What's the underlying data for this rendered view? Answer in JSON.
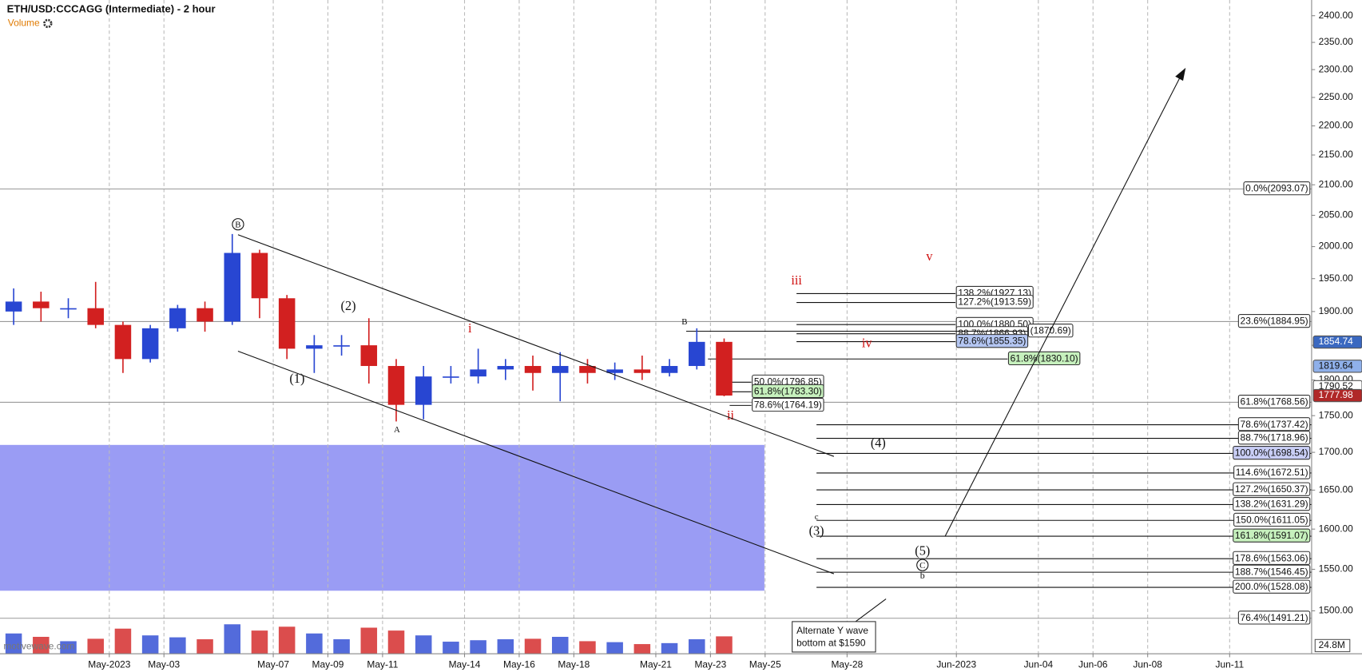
{
  "chart_data": {
    "type": "candlestick",
    "title": "ETH/USD:CCCAGG (Intermediate) - 2 hour",
    "volume_label": "Volume",
    "watermark": "motivewave.com",
    "log_scale": true,
    "grid": true,
    "up_color": "#2846d2",
    "down_color": "#d22020",
    "x": [
      "2023-04-27",
      "2023-04-28",
      "2023-04-29",
      "2023-04-30",
      "2023-05-01",
      "2023-05-02",
      "2023-05-03",
      "2023-05-04",
      "2023-05-05",
      "2023-05-06",
      "2023-05-07",
      "2023-05-08",
      "2023-05-09",
      "2023-05-10",
      "2023-05-11",
      "2023-05-12",
      "2023-05-13",
      "2023-05-14",
      "2023-05-15",
      "2023-05-16",
      "2023-05-17",
      "2023-05-18",
      "2023-05-19",
      "2023-05-20",
      "2023-05-21",
      "2023-05-22",
      "2023-05-23"
    ],
    "open": [
      1900,
      1915,
      1905,
      1905,
      1880,
      1830,
      1875,
      1905,
      1885,
      1990,
      1920,
      1845,
      1850,
      1850,
      1820,
      1765,
      1805,
      1805,
      1815,
      1820,
      1810,
      1820,
      1810,
      1815,
      1810,
      1820,
      1855
    ],
    "high": [
      1935,
      1930,
      1920,
      1945,
      1885,
      1880,
      1910,
      1915,
      2020,
      1995,
      1925,
      1865,
      1865,
      1890,
      1830,
      1820,
      1820,
      1845,
      1830,
      1835,
      1840,
      1830,
      1825,
      1835,
      1830,
      1875,
      1860
    ],
    "low": [
      1880,
      1885,
      1890,
      1875,
      1810,
      1825,
      1870,
      1870,
      1880,
      1890,
      1830,
      1810,
      1835,
      1795,
      1742,
      1745,
      1795,
      1795,
      1800,
      1785,
      1770,
      1795,
      1800,
      1800,
      1805,
      1815,
      1777
    ],
    "close": [
      1915,
      1905,
      1905,
      1880,
      1830,
      1875,
      1905,
      1885,
      1990,
      1920,
      1845,
      1850,
      1850,
      1820,
      1765,
      1805,
      1805,
      1815,
      1820,
      1810,
      1820,
      1810,
      1815,
      1810,
      1820,
      1855,
      1777.98
    ],
    "volume": [
      420,
      350,
      260,
      310,
      520,
      380,
      340,
      300,
      610,
      480,
      560,
      420,
      300,
      540,
      480,
      380,
      250,
      280,
      300,
      310,
      350,
      260,
      240,
      200,
      220,
      300,
      360
    ],
    "volume_ylim": [
      0,
      900
    ],
    "volume_tag": {
      "value": 24.8,
      "label": "24.8M"
    },
    "xlim": [
      "2023-04-27",
      "2023-06-14"
    ],
    "xticks": [
      {
        "value": "2023-05-01",
        "label": "May-2023"
      },
      {
        "value": "2023-05-03",
        "label": "May-03"
      },
      {
        "value": "2023-05-07",
        "label": "May-07"
      },
      {
        "value": "2023-05-09",
        "label": "May-09"
      },
      {
        "value": "2023-05-11",
        "label": "May-11"
      },
      {
        "value": "2023-05-14",
        "label": "May-14"
      },
      {
        "value": "2023-05-16",
        "label": "May-16"
      },
      {
        "value": "2023-05-18",
        "label": "May-18"
      },
      {
        "value": "2023-05-21",
        "label": "May-21"
      },
      {
        "value": "2023-05-23",
        "label": "May-23"
      },
      {
        "value": "2023-05-25",
        "label": "May-25"
      },
      {
        "value": "2023-05-28",
        "label": "May-28"
      },
      {
        "value": "2023-06-01",
        "label": "Jun-2023"
      },
      {
        "value": "2023-06-04",
        "label": "Jun-04"
      },
      {
        "value": "2023-06-06",
        "label": "Jun-06"
      },
      {
        "value": "2023-06-08",
        "label": "Jun-08"
      },
      {
        "value": "2023-06-11",
        "label": "Jun-11"
      }
    ],
    "ylim": [
      1450,
      2430
    ],
    "yticks": [
      {
        "value": 1500,
        "label": "1500.00"
      },
      {
        "value": 1550,
        "label": "1550.00"
      },
      {
        "value": 1600,
        "label": "1600.00"
      },
      {
        "value": 1650,
        "label": "1650.00"
      },
      {
        "value": 1700,
        "label": "1700.00"
      },
      {
        "value": 1750,
        "label": "1750.00"
      },
      {
        "value": 1800,
        "label": "1800.00"
      },
      {
        "value": 1850,
        "label": "1850.00"
      },
      {
        "value": 1900,
        "label": "1900.00"
      },
      {
        "value": 1950,
        "label": "1950.00"
      },
      {
        "value": 2000,
        "label": "2000.00"
      },
      {
        "value": 2050,
        "label": "2050.00"
      },
      {
        "value": 2100,
        "label": "2100.00"
      },
      {
        "value": 2150,
        "label": "2150.00"
      },
      {
        "value": 2200,
        "label": "2200.00"
      },
      {
        "value": 2250,
        "label": "2250.00"
      },
      {
        "value": 2300,
        "label": "2300.00"
      },
      {
        "value": 2350,
        "label": "2350.00"
      },
      {
        "value": 2400,
        "label": "2400.00"
      }
    ],
    "zone": {
      "range": [
        1524,
        1710
      ],
      "color": "#9a9cf4"
    },
    "price_tags": [
      {
        "value": 1854.74,
        "color": "#3a68c0",
        "text_color": "#ffffff"
      },
      {
        "value": 1819.64,
        "color": "#8fb0ea",
        "text_color": "#111111"
      },
      {
        "value": 1790.52,
        "color": "#ffffff",
        "text_color": "#111111"
      },
      {
        "value": 1777.98,
        "color": "#b02828",
        "text_color": "#ffffff"
      }
    ],
    "fib_groups": [
      {
        "levels": [
          {
            "value": 2093.07,
            "label": "0.0%(2093.07)"
          },
          {
            "value": 1884.95,
            "label": "23.6%(1884.95)"
          },
          {
            "value": 1768.56,
            "label": "61.8%(1768.56)"
          },
          {
            "value": 1491.21,
            "label": "76.4%(1491.21)"
          }
        ]
      },
      {
        "levels": [
          {
            "value": 1737.42,
            "label": "78.6%(1737.42)"
          },
          {
            "value": 1718.96,
            "label": "88.7%(1718.96)"
          },
          {
            "value": 1698.54,
            "label": "100.0%(1698.54)",
            "fill": "#c9cef6"
          },
          {
            "value": 1672.51,
            "label": "114.6%(1672.51)"
          },
          {
            "value": 1650.37,
            "label": "127.2%(1650.37)"
          },
          {
            "value": 1631.29,
            "label": "138.2%(1631.29)"
          },
          {
            "value": 1611.05,
            "label": "150.0%(1611.05)"
          },
          {
            "value": 1591.07,
            "label": "161.8%(1591.07)",
            "fill": "#c6f0bd"
          },
          {
            "value": 1563.06,
            "label": "178.6%(1563.06)"
          },
          {
            "value": 1546.45,
            "label": "188.7%(1546.45)"
          },
          {
            "value": 1528.08,
            "label": "200.0%(1528.08)"
          }
        ]
      },
      {
        "levels": [
          {
            "value": 1927.13,
            "label": "138.2%(1927.13)"
          },
          {
            "value": 1913.59,
            "label": "127.2%(1913.59)"
          },
          {
            "value": 1880.5,
            "label": "100.0%(1880.50)"
          },
          {
            "value": 1866.93,
            "label": "88.7%(1866.93)"
          },
          {
            "value": 1855.35,
            "label": "78.6%(1855.35)",
            "fill": "#b4c6f2"
          }
        ]
      },
      {
        "levels": [
          {
            "value": 1870.69,
            "label": "(1870.69)"
          }
        ]
      },
      {
        "levels": [
          {
            "value": 1830.1,
            "label": "61.8%(1830.10)",
            "fill": "#c6f0bd"
          }
        ]
      },
      {
        "levels": [
          {
            "value": 1796.85,
            "label": "50.0%(1796.85)"
          },
          {
            "value": 1783.3,
            "label": "61.8%(1783.30)",
            "fill": "#c6f0bd"
          },
          {
            "value": 1764.19,
            "label": "78.6%(1764.19)"
          }
        ]
      }
    ],
    "waves": [
      {
        "text": "B",
        "color": "#111111"
      },
      {
        "text": "(2)",
        "color": "#111111"
      },
      {
        "text": "(1)",
        "color": "#111111"
      },
      {
        "text": "A",
        "color": "#111111"
      },
      {
        "text": "i",
        "color": "#d01010"
      },
      {
        "text": "ii",
        "color": "#d01010"
      },
      {
        "text": "B",
        "color": "#111111"
      },
      {
        "text": "iii",
        "color": "#d01010"
      },
      {
        "text": "iv",
        "color": "#d01010"
      },
      {
        "text": "v",
        "color": "#d01010"
      },
      {
        "text": "(4)",
        "color": "#111111"
      },
      {
        "text": "c",
        "color": "#111111"
      },
      {
        "text": "(3)",
        "color": "#111111"
      },
      {
        "text": "(5)",
        "color": "#111111"
      },
      {
        "text": "C",
        "color": "#111111"
      },
      {
        "text": "b",
        "color": "#111111"
      }
    ],
    "annotation": [
      "Alternate Y wave",
      "bottom at $1590"
    ]
  }
}
